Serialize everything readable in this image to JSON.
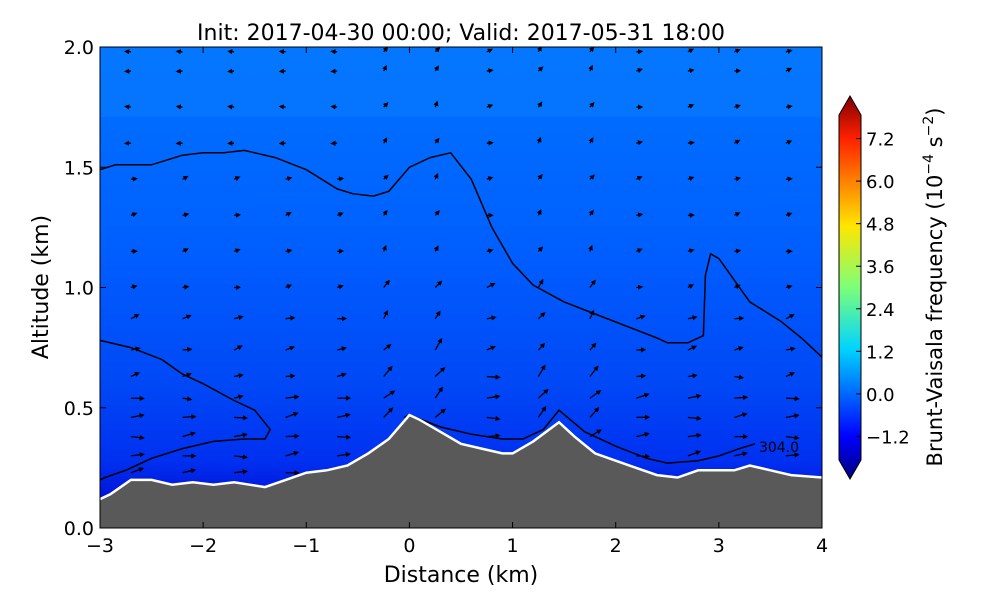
{
  "chart_data": {
    "type": "heatmap",
    "title": "Init: 2017-04-30 00:00; Valid: 2017-05-31 18:00",
    "xlabel": "Distance (km)",
    "ylabel": "Altitude (km)",
    "xlim": [
      -3,
      4
    ],
    "ylim": [
      0,
      2
    ],
    "x_ticks": [
      "−3",
      "−2",
      "−1",
      "0",
      "1",
      "2",
      "3",
      "4"
    ],
    "y_ticks": [
      "0.0",
      "0.5",
      "1.0",
      "1.5",
      "2.0"
    ],
    "colorbar": {
      "label_main": "Brunt-Vaisala frequency (10",
      "label_exp1": "−4",
      "label_mid": " s",
      "label_exp2": "−2",
      "label_end": ")",
      "range": [
        -2.4,
        8.4
      ],
      "ticks": [
        "−1.2",
        "0.0",
        "1.2",
        "2.4",
        "3.6",
        "4.8",
        "6.0",
        "7.2"
      ],
      "tick_values": [
        -1.2,
        0.0,
        1.2,
        2.4,
        3.6,
        4.8,
        6.0,
        7.2
      ],
      "colormap": "jet"
    },
    "terrain": {
      "x": [
        -3.0,
        -2.9,
        -2.7,
        -2.5,
        -2.3,
        -2.1,
        -1.9,
        -1.7,
        -1.55,
        -1.4,
        -1.2,
        -1.0,
        -0.8,
        -0.6,
        -0.4,
        -0.2,
        0.0,
        0.1,
        0.3,
        0.5,
        0.7,
        0.9,
        1.0,
        1.2,
        1.45,
        1.6,
        1.8,
        2.0,
        2.2,
        2.4,
        2.6,
        2.8,
        3.0,
        3.15,
        3.3,
        3.5,
        3.7,
        4.0
      ],
      "y": [
        0.12,
        0.14,
        0.2,
        0.2,
        0.18,
        0.19,
        0.18,
        0.19,
        0.18,
        0.17,
        0.2,
        0.23,
        0.24,
        0.26,
        0.31,
        0.37,
        0.47,
        0.45,
        0.4,
        0.35,
        0.33,
        0.31,
        0.31,
        0.36,
        0.44,
        0.38,
        0.31,
        0.28,
        0.25,
        0.22,
        0.21,
        0.24,
        0.24,
        0.24,
        0.26,
        0.24,
        0.22,
        0.21
      ]
    },
    "isentropes": [
      {
        "label": "",
        "x": [
          -3.0,
          -2.85,
          -2.5,
          -2.2,
          -2.0,
          -1.8,
          -1.6,
          -1.3,
          -1.0,
          -0.7,
          -0.55,
          -0.35,
          -0.2,
          0.0,
          0.2,
          0.4,
          0.6,
          0.8,
          1.0,
          1.2,
          1.5,
          1.8,
          2.1,
          2.4,
          2.5,
          2.7,
          2.85,
          2.87,
          2.92,
          3.0,
          3.3,
          3.6,
          3.8,
          4.0
        ],
        "y": [
          1.49,
          1.51,
          1.51,
          1.55,
          1.56,
          1.56,
          1.57,
          1.54,
          1.49,
          1.41,
          1.39,
          1.38,
          1.4,
          1.5,
          1.54,
          1.56,
          1.45,
          1.25,
          1.1,
          1.01,
          0.94,
          0.89,
          0.84,
          0.79,
          0.77,
          0.77,
          0.8,
          1.05,
          1.14,
          1.12,
          0.94,
          0.86,
          0.79,
          0.71
        ]
      },
      {
        "label": "",
        "x": [
          -3.0,
          -2.7,
          -2.4,
          -2.2,
          -2.0,
          -1.7,
          -1.5,
          -1.35,
          -1.4,
          -1.6,
          -1.9,
          -2.2,
          -2.5,
          -2.75,
          -2.95,
          -3.0
        ],
        "y": [
          0.78,
          0.75,
          0.7,
          0.64,
          0.6,
          0.53,
          0.49,
          0.41,
          0.37,
          0.37,
          0.36,
          0.33,
          0.29,
          0.24,
          0.21,
          0.2
        ]
      },
      {
        "label": "304.0",
        "x": [
          -0.05,
          0.0,
          0.3,
          0.6,
          0.9,
          1.1,
          1.3,
          1.45,
          1.7,
          2.0,
          2.3,
          2.5,
          2.8,
          3.0,
          3.2,
          3.35
        ],
        "y": [
          0.46,
          0.47,
          0.42,
          0.39,
          0.37,
          0.37,
          0.41,
          0.49,
          0.4,
          0.34,
          0.29,
          0.27,
          0.28,
          0.3,
          0.33,
          0.35
        ]
      }
    ],
    "wind_vectors": {
      "columns_x": [
        -2.7,
        -2.2,
        -1.7,
        -1.2,
        -0.7,
        -0.25,
        0.25,
        0.75,
        1.25,
        1.75,
        2.2,
        2.7,
        3.15,
        3.65
      ],
      "levels_y": [
        0.23,
        0.3,
        0.38,
        0.46,
        0.54,
        0.63,
        0.74,
        0.87,
        1.0,
        1.15,
        1.3,
        1.45,
        1.6,
        1.75,
        1.9,
        1.98
      ],
      "direction": "mostly eastward near surface, weak aloft"
    }
  }
}
